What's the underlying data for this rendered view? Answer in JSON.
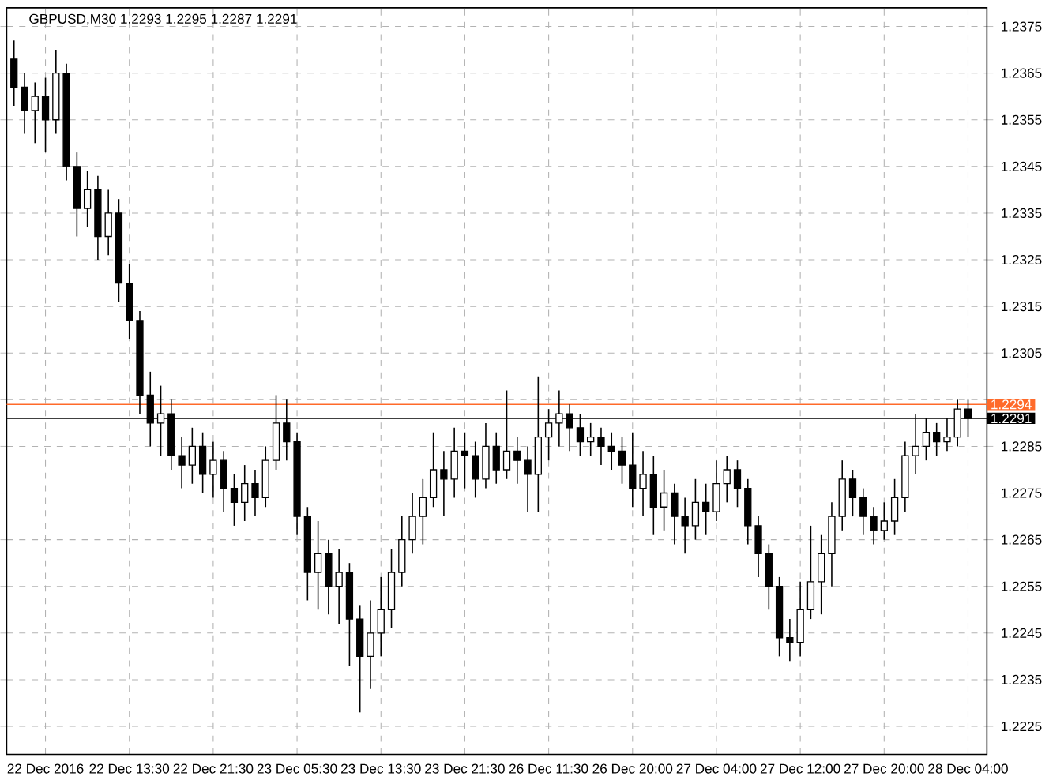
{
  "chart_data": {
    "type": "candlestick",
    "title": "GBPUSD,M30  1.2293 1.2295 1.2287 1.2291",
    "categories": [
      null,
      null,
      null,
      "22 Dec 2016",
      null,
      null,
      null,
      null,
      null,
      null,
      null,
      "22 Dec 13:30",
      null,
      null,
      null,
      null,
      null,
      null,
      null,
      "22 Dec 21:30",
      null,
      null,
      null,
      null,
      null,
      null,
      null,
      "23 Dec 05:30",
      null,
      null,
      null,
      null,
      null,
      null,
      null,
      "23 Dec 13:30",
      null,
      null,
      null,
      null,
      null,
      null,
      null,
      "23 Dec 21:30",
      null,
      null,
      null,
      null,
      null,
      null,
      null,
      "26 Dec 11:30",
      null,
      null,
      null,
      null,
      null,
      null,
      null,
      "26 Dec 20:00",
      null,
      null,
      null,
      null,
      null,
      null,
      null,
      "27 Dec 04:00",
      null,
      null,
      null,
      null,
      null,
      null,
      null,
      "27 Dec 12:00",
      null,
      null,
      null,
      null,
      null,
      null,
      null,
      "27 Dec 20:00",
      null,
      null,
      null,
      null,
      null,
      null,
      null,
      "28 Dec 04:00"
    ],
    "ohlc": [
      [
        1.2368,
        1.2372,
        1.2358,
        1.2362
      ],
      [
        1.2362,
        1.2365,
        1.2352,
        1.2357
      ],
      [
        1.2357,
        1.2363,
        1.235,
        1.236
      ],
      [
        1.236,
        1.2364,
        1.2348,
        1.2355
      ],
      [
        1.2355,
        1.237,
        1.2352,
        1.2365
      ],
      [
        1.2365,
        1.2367,
        1.2342,
        1.2345
      ],
      [
        1.2345,
        1.2348,
        1.233,
        1.2336
      ],
      [
        1.2336,
        1.2344,
        1.2332,
        1.234
      ],
      [
        1.234,
        1.2343,
        1.2325,
        1.233
      ],
      [
        1.233,
        1.234,
        1.2326,
        1.2335
      ],
      [
        1.2335,
        1.2338,
        1.2316,
        1.232
      ],
      [
        1.232,
        1.2324,
        1.2308,
        1.2312
      ],
      [
        1.2312,
        1.2314,
        1.2292,
        1.2296
      ],
      [
        1.2296,
        1.2301,
        1.2285,
        1.229
      ],
      [
        1.229,
        1.2298,
        1.2283,
        1.2292
      ],
      [
        1.2292,
        1.2295,
        1.228,
        1.2283
      ],
      [
        1.2283,
        1.2287,
        1.2276,
        1.2281
      ],
      [
        1.2281,
        1.2289,
        1.2277,
        1.2285
      ],
      [
        1.2285,
        1.2288,
        1.2275,
        1.2279
      ],
      [
        1.2279,
        1.2286,
        1.2274,
        1.2282
      ],
      [
        1.2282,
        1.2284,
        1.2271,
        1.2276
      ],
      [
        1.2276,
        1.2279,
        1.2268,
        1.2273
      ],
      [
        1.2273,
        1.2281,
        1.2269,
        1.2277
      ],
      [
        1.2277,
        1.228,
        1.227,
        1.2274
      ],
      [
        1.2274,
        1.2285,
        1.2272,
        1.2282
      ],
      [
        1.2282,
        1.2296,
        1.228,
        1.229
      ],
      [
        1.229,
        1.2295,
        1.2282,
        1.2286
      ],
      [
        1.2286,
        1.2288,
        1.2266,
        1.227
      ],
      [
        1.227,
        1.2272,
        1.2252,
        1.2258
      ],
      [
        1.2258,
        1.2269,
        1.225,
        1.2262
      ],
      [
        1.2262,
        1.2265,
        1.2249,
        1.2255
      ],
      [
        1.2255,
        1.2263,
        1.2247,
        1.2258
      ],
      [
        1.2258,
        1.226,
        1.2238,
        1.2248
      ],
      [
        1.2248,
        1.2251,
        1.2228,
        1.224
      ],
      [
        1.224,
        1.2252,
        1.2233,
        1.2245
      ],
      [
        1.2245,
        1.2257,
        1.224,
        1.225
      ],
      [
        1.225,
        1.2263,
        1.2246,
        1.2258
      ],
      [
        1.2258,
        1.227,
        1.2255,
        1.2265
      ],
      [
        1.2265,
        1.2275,
        1.2262,
        1.227
      ],
      [
        1.227,
        1.2278,
        1.2264,
        1.2274
      ],
      [
        1.2274,
        1.2288,
        1.2272,
        1.228
      ],
      [
        1.228,
        1.2284,
        1.227,
        1.2278
      ],
      [
        1.2278,
        1.2289,
        1.2274,
        1.2284
      ],
      [
        1.2284,
        1.2288,
        1.2276,
        1.2283
      ],
      [
        1.2283,
        1.2286,
        1.2274,
        1.2278
      ],
      [
        1.2278,
        1.229,
        1.2276,
        1.2285
      ],
      [
        1.2285,
        1.2288,
        1.2277,
        1.228
      ],
      [
        1.228,
        1.2297,
        1.2278,
        1.2284
      ],
      [
        1.2284,
        1.2287,
        1.2277,
        1.2282
      ],
      [
        1.2282,
        1.2285,
        1.2271,
        1.2279
      ],
      [
        1.2279,
        1.23,
        1.2271,
        1.2287
      ],
      [
        1.2287,
        1.2293,
        1.2282,
        1.229
      ],
      [
        1.229,
        1.2297,
        1.2285,
        1.2292
      ],
      [
        1.2292,
        1.2294,
        1.2284,
        1.2289
      ],
      [
        1.2289,
        1.2292,
        1.2283,
        1.2286
      ],
      [
        1.2286,
        1.229,
        1.2283,
        1.2287
      ],
      [
        1.2287,
        1.2289,
        1.2281,
        1.2285
      ],
      [
        1.2285,
        1.2288,
        1.228,
        1.2284
      ],
      [
        1.2284,
        1.2287,
        1.2277,
        1.2281
      ],
      [
        1.2281,
        1.2288,
        1.2272,
        1.2276
      ],
      [
        1.2276,
        1.2284,
        1.227,
        1.2279
      ],
      [
        1.2279,
        1.2283,
        1.2266,
        1.2272
      ],
      [
        1.2272,
        1.228,
        1.2267,
        1.2275
      ],
      [
        1.2275,
        1.2277,
        1.2264,
        1.227
      ],
      [
        1.227,
        1.2274,
        1.2262,
        1.2268
      ],
      [
        1.2268,
        1.2278,
        1.2265,
        1.2273
      ],
      [
        1.2273,
        1.2277,
        1.2266,
        1.2271
      ],
      [
        1.2271,
        1.2282,
        1.2269,
        1.2277
      ],
      [
        1.2277,
        1.2283,
        1.2273,
        1.228
      ],
      [
        1.228,
        1.2282,
        1.2272,
        1.2276
      ],
      [
        1.2276,
        1.2278,
        1.2264,
        1.2268
      ],
      [
        1.2268,
        1.227,
        1.2257,
        1.2262
      ],
      [
        1.2262,
        1.2264,
        1.225,
        1.2255
      ],
      [
        1.2255,
        1.2257,
        1.224,
        1.2244
      ],
      [
        1.2244,
        1.2248,
        1.2239,
        1.2243
      ],
      [
        1.2243,
        1.2256,
        1.224,
        1.225
      ],
      [
        1.225,
        1.2268,
        1.2248,
        1.2256
      ],
      [
        1.2256,
        1.2266,
        1.2249,
        1.2262
      ],
      [
        1.2262,
        1.2273,
        1.2255,
        1.227
      ],
      [
        1.227,
        1.2282,
        1.2267,
        1.2278
      ],
      [
        1.2278,
        1.228,
        1.227,
        1.2274
      ],
      [
        1.2274,
        1.2276,
        1.2266,
        1.227
      ],
      [
        1.227,
        1.2272,
        1.2264,
        1.2267
      ],
      [
        1.2267,
        1.2273,
        1.2265,
        1.2269
      ],
      [
        1.2269,
        1.2278,
        1.2266,
        1.2274
      ],
      [
        1.2274,
        1.2286,
        1.2271,
        1.2283
      ],
      [
        1.2283,
        1.2292,
        1.2279,
        1.2285
      ],
      [
        1.2285,
        1.2291,
        1.2282,
        1.2288
      ],
      [
        1.2288,
        1.229,
        1.2283,
        1.2286
      ],
      [
        1.2286,
        1.2291,
        1.2284,
        1.2287
      ],
      [
        1.2287,
        1.2295,
        1.2285,
        1.2293
      ],
      [
        1.2293,
        1.2295,
        1.2287,
        1.2291
      ]
    ],
    "ylim": [
      1.2219,
      1.2379
    ],
    "yticks": [
      1.2225,
      1.2235,
      1.2245,
      1.2255,
      1.2265,
      1.2275,
      1.2285,
      {
        "value": 1.2295,
        "label": null
      },
      1.2305,
      1.2315,
      1.2325,
      1.2335,
      1.2345,
      1.2355,
      1.2365,
      1.2375
    ],
    "grid": true,
    "ref_lines": [
      {
        "axis": "y",
        "value": 1.2294,
        "label": "1.2294",
        "color": "#ff6a2a"
      },
      {
        "axis": "y",
        "value": 1.2291,
        "label": "1.2291",
        "color": "#000000"
      }
    ]
  }
}
